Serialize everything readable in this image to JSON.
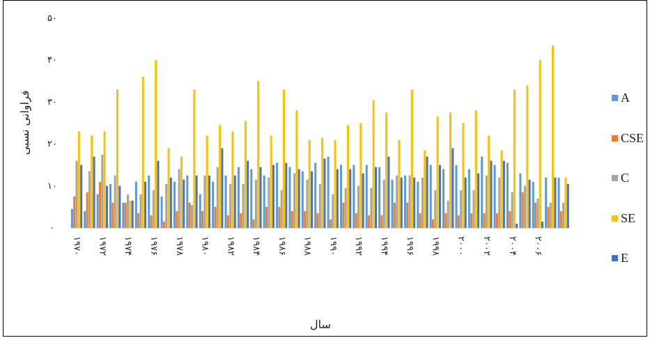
{
  "chart_data": {
    "type": "bar",
    "title": "",
    "xlabel": "سال",
    "ylabel": "فراوانی نسبی",
    "ylim": [
      0,
      50
    ],
    "y_ticks": [
      0,
      10,
      20,
      30,
      40,
      50
    ],
    "y_tick_labels": [
      "۰",
      "۱۰",
      "۲۰",
      "۳۰",
      "۴۰",
      "۵۰"
    ],
    "grid": false,
    "legend_position": "right",
    "categories": [
      "1970",
      "1971",
      "1972",
      "1973",
      "1974",
      "1975",
      "1976",
      "1977",
      "1978",
      "1979",
      "1980",
      "1981",
      "1982",
      "1983",
      "1984",
      "1985",
      "1986",
      "1987",
      "1988",
      "1989",
      "1990",
      "1991",
      "1992",
      "1993",
      "1994",
      "1995",
      "1996",
      "1997",
      "1998",
      "1999",
      "2000",
      "2001",
      "2002",
      "2003",
      "2004",
      "2005",
      "2006",
      "2007",
      "2008"
    ],
    "x_tick_labels": [
      {
        "index": 0,
        "label": "۱۹۷۰"
      },
      {
        "index": 2,
        "label": "۱۹۷۲"
      },
      {
        "index": 4,
        "label": "۱۹۷۴"
      },
      {
        "index": 6,
        "label": "۱۹۷۶"
      },
      {
        "index": 8,
        "label": "۱۹۷۸"
      },
      {
        "index": 10,
        "label": "۱۹۸۰"
      },
      {
        "index": 12,
        "label": "۱۹۸۲"
      },
      {
        "index": 14,
        "label": "۱۹۸۴"
      },
      {
        "index": 16,
        "label": "۱۹۸۶"
      },
      {
        "index": 18,
        "label": "۱۹۸۸"
      },
      {
        "index": 20,
        "label": "۱۹۹۰"
      },
      {
        "index": 22,
        "label": "۱۹۹۲"
      },
      {
        "index": 24,
        "label": "۱۹۹۴"
      },
      {
        "index": 26,
        "label": "۱۹۹۶"
      },
      {
        "index": 28,
        "label": "۱۹۹۸"
      },
      {
        "index": 30,
        "label": "۲۰۰۰"
      },
      {
        "index": 32,
        "label": "۲۰۰۲"
      },
      {
        "index": 34,
        "label": "۲۰۰۴"
      },
      {
        "index": 36,
        "label": "۲۰۰۶"
      }
    ],
    "series": [
      {
        "name": "A",
        "color": "#5B9BD5",
        "values": [
          4.5,
          4,
          8,
          10.5,
          6,
          11,
          12.5,
          7.5,
          11,
          12.5,
          8,
          11,
          12.5,
          14.5,
          14,
          12.5,
          15.5,
          14.5,
          13.5,
          15.5,
          17,
          15,
          15,
          15,
          14.5,
          11.5,
          12.5,
          11,
          15,
          14,
          15,
          14,
          17,
          15,
          15.5,
          13,
          11,
          12,
          12
        ]
      },
      {
        "name": "CSE",
        "color": "#ED7D31",
        "values": [
          7.5,
          8.5,
          11,
          6,
          6,
          3.5,
          3,
          1.5,
          4,
          6,
          4,
          5,
          3,
          3.5,
          2,
          5,
          5,
          4,
          4,
          3.5,
          2,
          6,
          3.5,
          3,
          3,
          6,
          6,
          3.5,
          2,
          3.5,
          3,
          3.5,
          3.5,
          3.5,
          4,
          8.5,
          6,
          5,
          4
        ]
      },
      {
        "name": "C",
        "color": "#A5A5A5",
        "values": [
          16,
          13.5,
          17.5,
          12.5,
          8,
          8,
          9,
          10.5,
          14,
          5.5,
          12.5,
          14.5,
          10.5,
          10.5,
          11.5,
          12,
          9,
          13,
          11.5,
          10.5,
          8,
          9.5,
          10,
          9.5,
          11.5,
          12.5,
          12.5,
          12,
          9,
          6.5,
          9,
          9,
          12.5,
          12,
          8.5,
          10,
          7,
          6,
          6
        ]
      },
      {
        "name": "SE",
        "color": "#FFC000",
        "values": [
          23,
          22,
          23,
          33,
          6.5,
          36,
          40,
          19,
          17,
          33,
          22,
          24.5,
          23,
          25.5,
          35,
          22,
          33,
          28,
          21,
          21.5,
          21,
          24.5,
          25,
          30.5,
          27.5,
          21,
          33,
          18.5,
          26.5,
          27.5,
          25,
          28,
          22,
          18.5,
          33,
          34,
          40,
          43.5,
          12
        ]
      },
      {
        "name": "E",
        "color": "#4472C4",
        "values": [
          15,
          17,
          10,
          10,
          6.5,
          11,
          16,
          12,
          11.5,
          12.5,
          12.5,
          19,
          12.5,
          16,
          14.5,
          15,
          15.5,
          14,
          13.5,
          16.5,
          14,
          14,
          13,
          14.5,
          17,
          12,
          12,
          17,
          15,
          19,
          12,
          13,
          16,
          16,
          1,
          11.5,
          1.5,
          12,
          10.5
        ]
      }
    ]
  }
}
